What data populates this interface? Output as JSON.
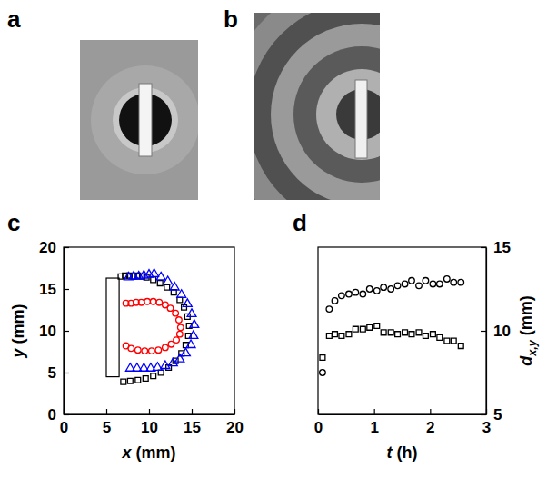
{
  "panel_labels": [
    "a",
    "b",
    "c",
    "d"
  ],
  "chart_data": [
    {
      "type": "scatter",
      "x_label": "x (mm)",
      "y_label": "y (mm)",
      "xlim": [
        0,
        20
      ],
      "xticks": [
        0,
        5,
        10,
        15,
        20
      ],
      "ylim": [
        0,
        20
      ],
      "yticks": [
        0,
        5,
        10,
        15,
        20
      ],
      "shapes": [
        {
          "type": "rect",
          "x0": 5,
          "x1": 6.5,
          "y0": 4.5,
          "y1": 16.3
        }
      ],
      "series": [
        {
          "color": "#000000",
          "marker": "square",
          "x": [
            6.7,
            7.2,
            7.7,
            8.2,
            8.7,
            9.2,
            9.7,
            10.5,
            11.3,
            12.1,
            12.9,
            13.6,
            14.1,
            14.5,
            14.7,
            14.6,
            14.3,
            13.8,
            13.1,
            12.3,
            11.4,
            10.5,
            9.6,
            8.7,
            7.8,
            7.0
          ],
          "values": [
            16.5,
            16.6,
            16.6,
            16.5,
            16.6,
            16.5,
            16.4,
            16.1,
            15.7,
            15.2,
            14.6,
            13.7,
            12.8,
            11.7,
            10.6,
            9.4,
            8.3,
            7.3,
            6.4,
            5.6,
            5.0,
            4.6,
            4.3,
            4.1,
            4.0,
            3.9
          ]
        },
        {
          "color": "#0000ff",
          "marker": "triangle",
          "x": [
            7.6,
            8.2,
            8.8,
            9.4,
            10.0,
            10.6,
            11.4,
            12.2,
            13.0,
            13.8,
            14.5,
            15.0,
            15.3,
            15.2,
            14.9,
            14.3,
            13.6,
            12.8,
            11.9,
            11.0,
            10.2,
            9.4,
            8.6,
            7.8
          ],
          "values": [
            16.4,
            16.5,
            16.5,
            16.6,
            16.7,
            16.8,
            16.4,
            15.9,
            15.2,
            14.3,
            13.2,
            12.0,
            10.7,
            9.4,
            8.3,
            7.3,
            6.6,
            6.1,
            5.8,
            5.6,
            5.5,
            5.5,
            5.5,
            5.5
          ]
        },
        {
          "color": "#ff0000",
          "marker": "circle",
          "x": [
            7.3,
            7.9,
            8.5,
            9.1,
            9.8,
            10.5,
            11.2,
            11.9,
            12.5,
            13.1,
            13.5,
            13.7,
            13.6,
            13.2,
            12.6,
            11.9,
            11.1,
            10.3,
            9.5,
            8.7,
            7.9,
            7.3
          ],
          "values": [
            13.3,
            13.3,
            13.4,
            13.4,
            13.5,
            13.5,
            13.4,
            13.1,
            12.7,
            12.1,
            11.3,
            10.4,
            9.6,
            8.9,
            8.4,
            8.0,
            7.7,
            7.6,
            7.6,
            7.7,
            7.9,
            8.2
          ]
        }
      ]
    },
    {
      "type": "scatter",
      "x_label": "t (h)",
      "y_label": "dx,y (mm)",
      "xlim": [
        0,
        3
      ],
      "xticks": [
        0,
        1,
        2,
        3
      ],
      "y2lim": [
        5,
        15
      ],
      "y2ticks": [
        5,
        10,
        15
      ],
      "series": [
        {
          "color": "#000000",
          "marker": "circle",
          "axis": "y2",
          "x": [
            0.08,
            0.2,
            0.3,
            0.42,
            0.55,
            0.67,
            0.8,
            0.92,
            1.05,
            1.17,
            1.3,
            1.42,
            1.55,
            1.67,
            1.8,
            1.92,
            2.05,
            2.17,
            2.3,
            2.42,
            2.55
          ],
          "values": [
            7.5,
            11.3,
            11.8,
            12.1,
            12.2,
            12.3,
            12.2,
            12.5,
            12.4,
            12.6,
            12.5,
            12.7,
            12.8,
            13.0,
            12.7,
            13.0,
            12.8,
            12.8,
            13.1,
            12.9,
            12.9
          ]
        },
        {
          "color": "#000000",
          "marker": "square",
          "axis": "y2",
          "x": [
            0.08,
            0.2,
            0.3,
            0.42,
            0.55,
            0.67,
            0.8,
            0.92,
            1.05,
            1.17,
            1.3,
            1.42,
            1.55,
            1.67,
            1.8,
            1.92,
            2.05,
            2.17,
            2.3,
            2.42,
            2.55
          ],
          "values": [
            8.4,
            9.7,
            9.8,
            9.7,
            9.8,
            10.1,
            10.1,
            10.2,
            10.3,
            9.9,
            9.9,
            9.8,
            9.9,
            9.8,
            9.9,
            9.7,
            9.8,
            9.6,
            9.4,
            9.4,
            9.1
          ]
        }
      ]
    }
  ]
}
